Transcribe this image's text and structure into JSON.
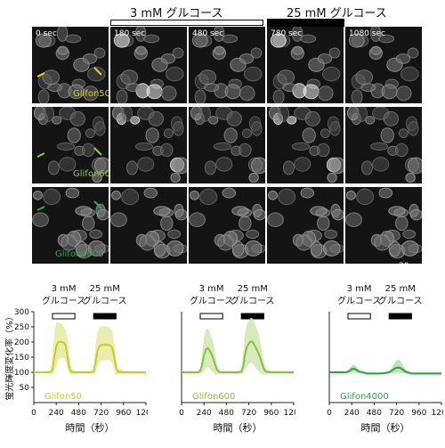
{
  "top": {
    "label_3mm": "3 mM グルコース",
    "label_25mm": "25 mM グルコース"
  },
  "images": {
    "times": [
      "0 sec",
      "180 sec",
      "480 sec",
      "780 sec",
      "1080 sec"
    ],
    "rows": [
      {
        "name": "Glifon50",
        "color": "#d6d12a"
      },
      {
        "name": "Glifon600",
        "color": "#8fc63d"
      },
      {
        "name": "Glifon4000",
        "color": "#36a84a"
      }
    ],
    "scalebar": "20 μm"
  },
  "chart_data": [
    {
      "type": "line",
      "series": [
        {
          "name": "Glifon50",
          "color": "#c9cb2a",
          "band_color": "#e8eaa0",
          "x": [
            0,
            60,
            120,
            180,
            200,
            220,
            240,
            260,
            280,
            300,
            320,
            340,
            360,
            380,
            400,
            420,
            440,
            460,
            480,
            540,
            600,
            640,
            660,
            680,
            700,
            720,
            740,
            760,
            780,
            800,
            820,
            840,
            860,
            880,
            900,
            960,
            1020,
            1080,
            1140,
            1200
          ],
          "y": [
            100,
            100,
            100,
            100,
            110,
            150,
            185,
            200,
            200,
            200,
            198,
            190,
            150,
            115,
            102,
            100,
            100,
            100,
            100,
            100,
            100,
            102,
            130,
            170,
            185,
            190,
            190,
            192,
            190,
            190,
            188,
            180,
            150,
            115,
            102,
            100,
            100,
            100,
            100,
            100
          ],
          "band_hi": [
            104,
            104,
            104,
            108,
            160,
            230,
            265,
            265,
            262,
            258,
            250,
            240,
            210,
            160,
            120,
            106,
            104,
            104,
            104,
            104,
            104,
            112,
            190,
            235,
            248,
            252,
            252,
            252,
            250,
            250,
            245,
            235,
            200,
            150,
            115,
            106,
            104,
            104,
            104,
            104
          ],
          "band_lo": [
            96,
            96,
            96,
            95,
            95,
            100,
            118,
            140,
            145,
            148,
            148,
            140,
            110,
            95,
            92,
            94,
            95,
            95,
            95,
            95,
            95,
            94,
            98,
            120,
            132,
            138,
            140,
            140,
            140,
            140,
            138,
            130,
            105,
            90,
            92,
            95,
            95,
            95,
            95,
            95
          ]
        }
      ],
      "xticks": [
        0,
        240,
        480,
        720,
        960,
        1200
      ],
      "yticks": [
        50,
        100,
        150,
        200,
        250,
        300
      ],
      "xlim": [
        0,
        1200
      ],
      "ylim": [
        0,
        300
      ],
      "ylabel": "蛍光輝度変化率（%）",
      "xlabel": "時間（秒）",
      "stim": [
        {
          "label1": "3 mM",
          "label2": "グルコース",
          "x0": 200,
          "x1": 440,
          "style": "open"
        },
        {
          "label1": "25 mM",
          "label2": "グルコース",
          "x0": 640,
          "x1": 880,
          "style": "filled"
        }
      ]
    },
    {
      "type": "line",
      "series": [
        {
          "name": "Glifon600",
          "color": "#86c240",
          "band_color": "#cfe6b0",
          "x": [
            0,
            60,
            120,
            180,
            200,
            220,
            240,
            260,
            280,
            300,
            320,
            340,
            360,
            380,
            400,
            420,
            440,
            460,
            480,
            540,
            600,
            640,
            660,
            680,
            700,
            720,
            740,
            760,
            780,
            800,
            820,
            840,
            860,
            880,
            900,
            960,
            1020,
            1080,
            1140,
            1200
          ],
          "y": [
            100,
            100,
            100,
            100,
            105,
            125,
            155,
            175,
            180,
            172,
            160,
            145,
            125,
            108,
            102,
            100,
            100,
            100,
            100,
            100,
            100,
            102,
            120,
            160,
            185,
            195,
            202,
            200,
            190,
            178,
            165,
            150,
            130,
            112,
            102,
            100,
            100,
            100,
            100,
            100
          ],
          "band_hi": [
            104,
            104,
            104,
            104,
            115,
            165,
            215,
            240,
            245,
            232,
            215,
            195,
            160,
            125,
            110,
            104,
            104,
            104,
            104,
            104,
            104,
            110,
            160,
            230,
            260,
            272,
            280,
            278,
            265,
            248,
            230,
            205,
            170,
            135,
            112,
            104,
            104,
            104,
            104,
            104
          ],
          "band_lo": [
            96,
            96,
            96,
            95,
            95,
            98,
            104,
            112,
            118,
            112,
            106,
            100,
            92,
            92,
            95,
            95,
            95,
            95,
            95,
            95,
            95,
            94,
            98,
            110,
            120,
            128,
            132,
            130,
            122,
            112,
            104,
            98,
            94,
            92,
            94,
            95,
            95,
            95,
            95,
            95
          ]
        }
      ],
      "xticks": [
        0,
        240,
        480,
        720,
        960,
        1200
      ],
      "yticks": [],
      "xlim": [
        0,
        1200
      ],
      "ylim": [
        0,
        300
      ],
      "ylabel": "",
      "xlabel": "時間（秒）",
      "stim": [
        {
          "label1": "3 mM",
          "label2": "グルコース",
          "x0": 200,
          "x1": 440,
          "style": "open"
        },
        {
          "label1": "25 mM",
          "label2": "グルコース",
          "x0": 640,
          "x1": 880,
          "style": "filled"
        }
      ]
    },
    {
      "type": "line",
      "series": [
        {
          "name": "Glifon4000",
          "color": "#2ea146",
          "band_color": "#b6dcb4",
          "x": [
            0,
            60,
            120,
            180,
            200,
            220,
            240,
            260,
            280,
            300,
            320,
            340,
            360,
            380,
            400,
            420,
            440,
            460,
            480,
            540,
            600,
            640,
            660,
            680,
            700,
            720,
            740,
            760,
            780,
            800,
            820,
            840,
            860,
            880,
            900,
            960,
            1020,
            1080,
            1140,
            1200
          ],
          "y": [
            100,
            100,
            100,
            100,
            102,
            106,
            110,
            112,
            110,
            106,
            103,
            101,
            100,
            98,
            96,
            96,
            96,
            96,
            96,
            96,
            98,
            100,
            104,
            108,
            112,
            115,
            116,
            114,
            110,
            106,
            102,
            100,
            98,
            96,
            96,
            96,
            96,
            96,
            96,
            96
          ],
          "band_hi": [
            103,
            103,
            103,
            103,
            106,
            114,
            122,
            126,
            122,
            114,
            108,
            104,
            103,
            101,
            99,
            99,
            99,
            99,
            99,
            99,
            101,
            104,
            112,
            122,
            132,
            140,
            142,
            138,
            128,
            118,
            108,
            103,
            101,
            99,
            99,
            99,
            99,
            99,
            99,
            99
          ],
          "band_lo": [
            97,
            97,
            97,
            97,
            98,
            98,
            99,
            99,
            98,
            98,
            97,
            97,
            96,
            94,
            93,
            93,
            93,
            93,
            93,
            93,
            95,
            96,
            97,
            97,
            98,
            98,
            98,
            98,
            97,
            96,
            95,
            95,
            94,
            93,
            93,
            93,
            93,
            93,
            93,
            93
          ]
        }
      ],
      "xticks": [
        0,
        240,
        480,
        720,
        960,
        1200
      ],
      "yticks": [],
      "xlim": [
        0,
        1200
      ],
      "ylim": [
        0,
        300
      ],
      "ylabel": "",
      "xlabel": "時間（秒）",
      "stim": [
        {
          "label1": "3 mM",
          "label2": "グルコース",
          "x0": 200,
          "x1": 440,
          "style": "open"
        },
        {
          "label1": "25 mM",
          "label2": "グルコース",
          "x0": 640,
          "x1": 880,
          "style": "filled"
        }
      ]
    }
  ]
}
